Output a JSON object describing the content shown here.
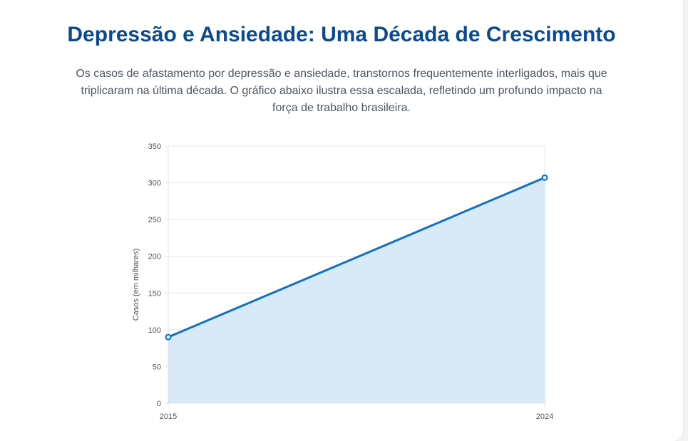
{
  "page": {
    "title": "Depressão e Ansiedade: Uma Década de Crescimento",
    "description": "Os casos de afastamento por depressão e ansiedade, transtornos frequentemente interligados, mais que triplicaram na última década. O gráfico abaixo ilustra essa escalada, refletindo um profundo impacto na força de trabalho brasileira."
  },
  "chart_data": {
    "type": "area",
    "x": [
      "2015",
      "2024"
    ],
    "series": [
      {
        "values": [
          90,
          307
        ]
      }
    ],
    "ylabel": "Casos (em milhares)",
    "xlabel": "",
    "ylim": [
      0,
      350
    ],
    "yticks": [
      0,
      50,
      100,
      150,
      200,
      250,
      300,
      350
    ],
    "grid": true,
    "legend": "none",
    "colors": {
      "line": "#1071c4",
      "fill": "#d8e9f8",
      "grid": "#e5e5e5",
      "axis": "#d0d0d0"
    }
  }
}
